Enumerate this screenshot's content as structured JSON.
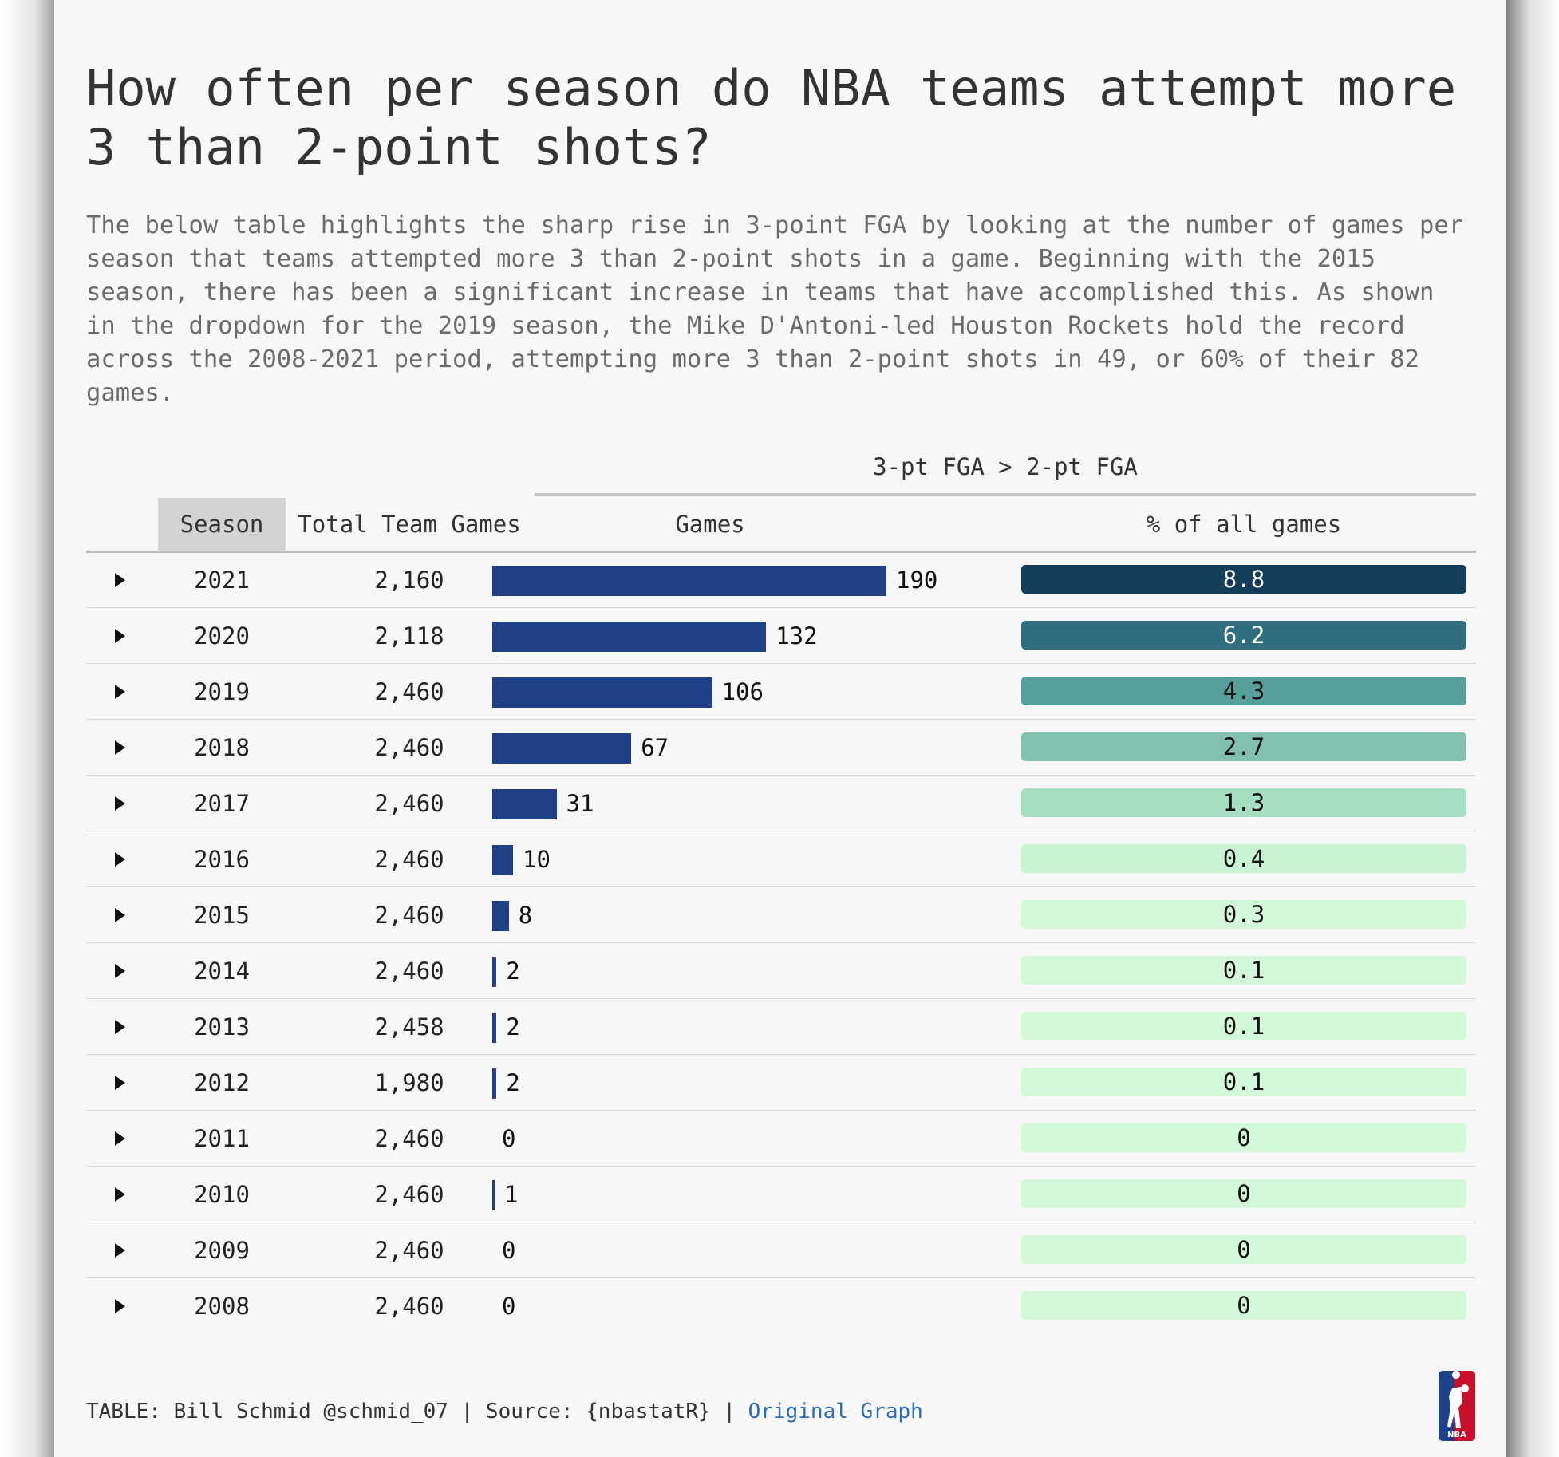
{
  "title": "How often per season do NBA teams attempt more 3 than 2-point shots?",
  "subtitle": "The below table highlights the sharp rise in 3-point FGA by looking at the number of games per season that teams attempted more 3 than 2-point shots in a game. Beginning with the 2015 season, there has been a significant increase in teams that have accomplished this. As shown in the dropdown for the 2019 season, the Mike D'Antoni-led Houston Rockets hold the record across the 2008-2021 period, attempting more 3 than 2-point shots in 49, or 60% of their 82 games.",
  "columns": {
    "spanner": "3-pt FGA > 2-pt FGA",
    "season": "Season",
    "total": "Total Team Games",
    "games": "Games",
    "pct": "% of all games"
  },
  "footer": {
    "credit": "TABLE: Bill Schmid @schmid_07",
    "source": "Source: {nbastatR}",
    "link": "Original Graph",
    "separator": "|"
  },
  "logo_text": "NBA",
  "colors": {
    "bar": "#1f3f86",
    "pct_scale": [
      "#d3f9d8",
      "#c8f4d3",
      "#a7dfc4",
      "#82c1b1",
      "#579f9b",
      "#2f6e7e",
      "#123c58"
    ]
  },
  "chart_data": {
    "type": "table",
    "title": "How often per season do NBA teams attempt more 3 than 2-point shots?",
    "categories": [
      "2021",
      "2020",
      "2019",
      "2018",
      "2017",
      "2016",
      "2015",
      "2014",
      "2013",
      "2012",
      "2011",
      "2010",
      "2009",
      "2008"
    ],
    "series": [
      {
        "name": "Total Team Games",
        "values": [
          "2,160",
          "2,118",
          "2,460",
          "2,460",
          "2,460",
          "2,460",
          "2,460",
          "2,460",
          "2,458",
          "1,980",
          "2,460",
          "2,460",
          "2,460",
          "2,460"
        ]
      },
      {
        "name": "Games",
        "values": [
          190,
          132,
          106,
          67,
          31,
          10,
          8,
          2,
          2,
          2,
          0,
          1,
          0,
          0
        ]
      },
      {
        "name": "% of all games",
        "values": [
          "8.8",
          "6.2",
          "4.3",
          "2.7",
          "1.3",
          "0.4",
          "0.3",
          "0.1",
          "0.1",
          "0.1",
          "0",
          "0",
          "0",
          "0"
        ]
      }
    ],
    "games_max": 190
  }
}
